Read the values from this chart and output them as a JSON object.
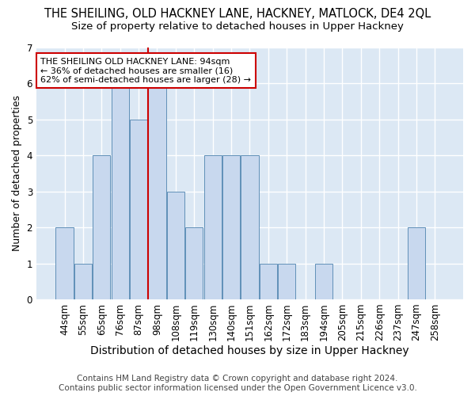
{
  "title": "THE SHEILING, OLD HACKNEY LANE, HACKNEY, MATLOCK, DE4 2QL",
  "subtitle": "Size of property relative to detached houses in Upper Hackney",
  "xlabel": "Distribution of detached houses by size in Upper Hackney",
  "ylabel": "Number of detached properties",
  "footer1": "Contains HM Land Registry data © Crown copyright and database right 2024.",
  "footer2": "Contains public sector information licensed under the Open Government Licence v3.0.",
  "categories": [
    "44sqm",
    "55sqm",
    "65sqm",
    "76sqm",
    "87sqm",
    "98sqm",
    "108sqm",
    "119sqm",
    "130sqm",
    "140sqm",
    "151sqm",
    "162sqm",
    "172sqm",
    "183sqm",
    "194sqm",
    "205sqm",
    "215sqm",
    "226sqm",
    "237sqm",
    "247sqm",
    "258sqm"
  ],
  "values": [
    2,
    1,
    4,
    6,
    5,
    6,
    3,
    2,
    4,
    4,
    4,
    1,
    1,
    0,
    1,
    0,
    0,
    0,
    0,
    2,
    0
  ],
  "bar_color": "#c8d8ee",
  "bar_edge_color": "#6090b8",
  "vline_pos": 4.5,
  "vline_color": "#cc0000",
  "annotation_text": "THE SHEILING OLD HACKNEY LANE: 94sqm\n← 36% of detached houses are smaller (16)\n62% of semi-detached houses are larger (28) →",
  "annotation_box_color": "#ffffff",
  "annotation_box_edge": "#cc0000",
  "ylim": [
    0,
    7
  ],
  "yticks": [
    0,
    1,
    2,
    3,
    4,
    5,
    6,
    7
  ],
  "fig_bg_color": "#ffffff",
  "plot_bg_color": "#dce8f4",
  "title_fontsize": 10.5,
  "subtitle_fontsize": 9.5,
  "xlabel_fontsize": 10,
  "ylabel_fontsize": 9,
  "tick_fontsize": 8.5,
  "annotation_fontsize": 8,
  "footer_fontsize": 7.5
}
